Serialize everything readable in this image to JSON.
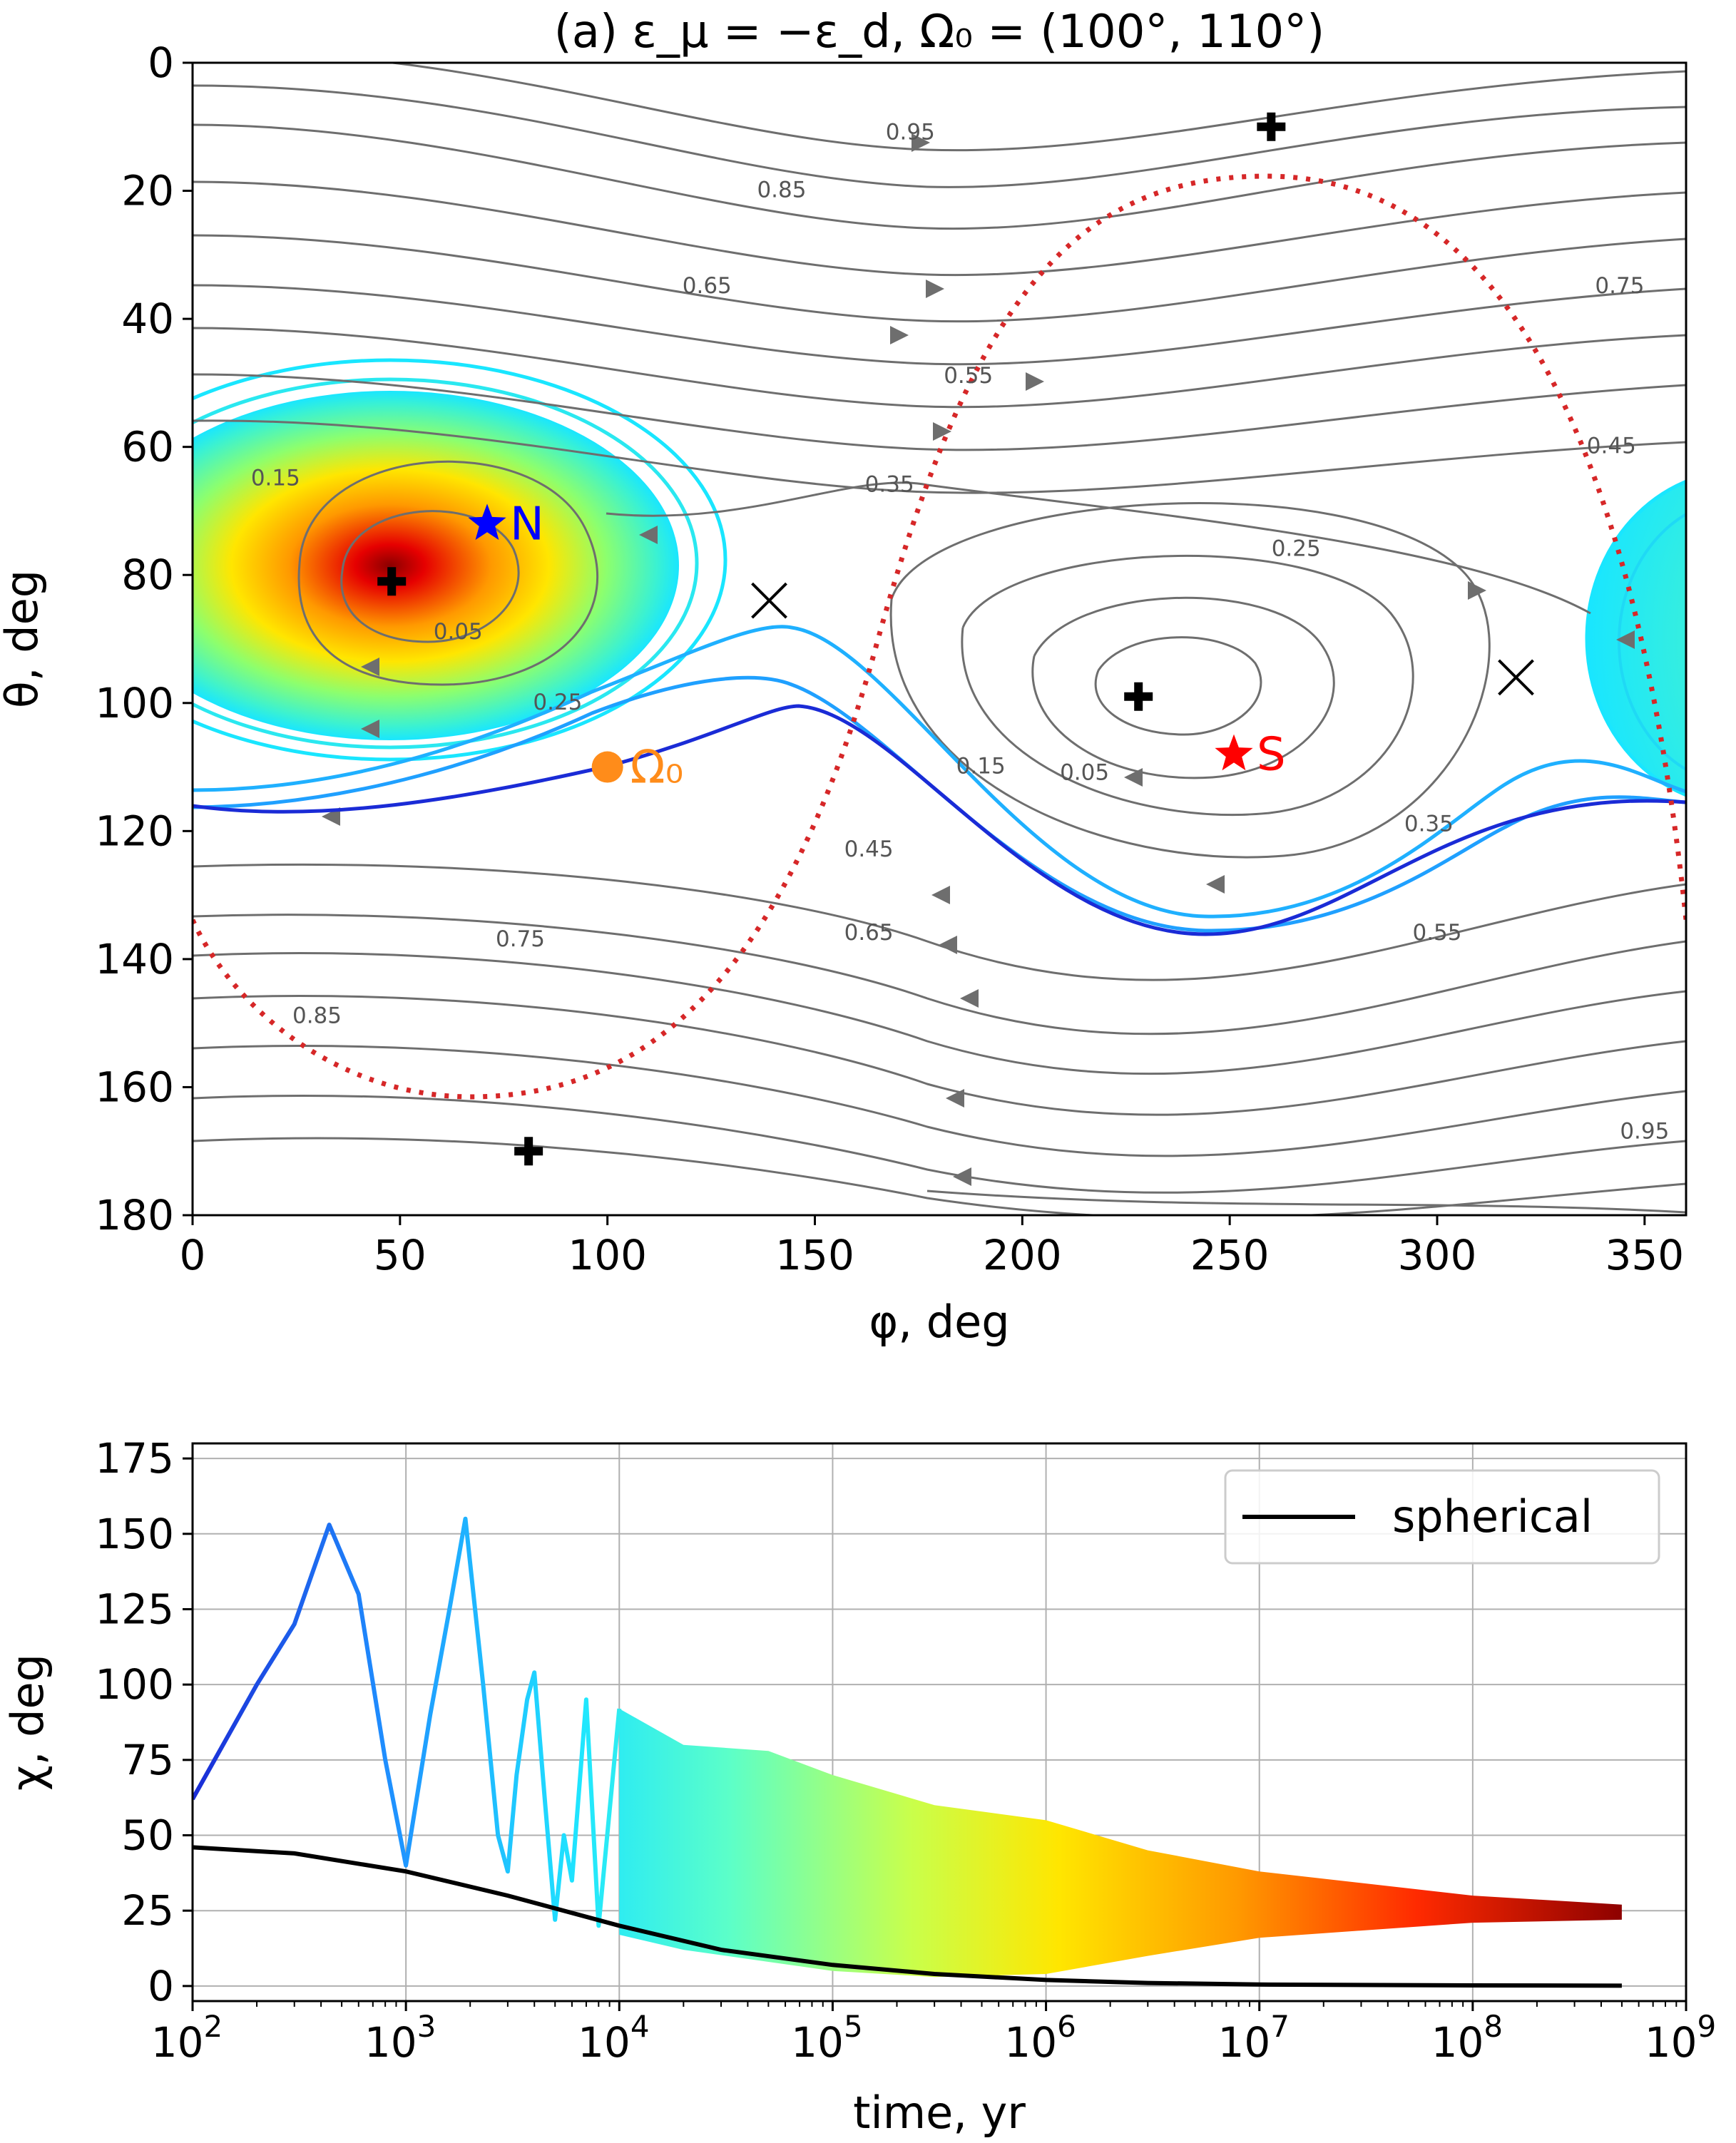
{
  "chart_data": [
    {
      "type": "contour",
      "title": "(a) ε_μ = −ε_d, Ω₀ = (100°, 110°)",
      "xlabel": "φ, deg",
      "ylabel": "θ, deg",
      "xlim": [
        0,
        360
      ],
      "ylim": [
        180,
        0
      ],
      "xticks": [
        "0",
        "50",
        "100",
        "150",
        "200",
        "250",
        "300",
        "350"
      ],
      "yticks": [
        "0",
        "20",
        "40",
        "60",
        "80",
        "100",
        "120",
        "140",
        "160",
        "180"
      ],
      "grid": false,
      "contour_levels": [
        {
          "label": "0.95",
          "x": 173,
          "y": 12
        },
        {
          "label": "0.85",
          "x": 142,
          "y": 21
        },
        {
          "label": "0.65",
          "x": 124,
          "y": 36
        },
        {
          "label": "0.55",
          "x": 187,
          "y": 50
        },
        {
          "label": "0.35",
          "x": 168,
          "y": 67
        },
        {
          "label": "0.25",
          "x": 266,
          "y": 77
        },
        {
          "label": "0.15",
          "x": 20,
          "y": 66
        },
        {
          "label": "0.05",
          "x": 64,
          "y": 90
        },
        {
          "label": "0.25",
          "x": 88,
          "y": 101
        },
        {
          "label": "0.15",
          "x": 190,
          "y": 111
        },
        {
          "label": "0.05",
          "x": 215,
          "y": 112
        },
        {
          "label": "0.35",
          "x": 298,
          "y": 120
        },
        {
          "label": "0.45",
          "x": 163,
          "y": 124
        },
        {
          "label": "0.65",
          "x": 163,
          "y": 137
        },
        {
          "label": "0.75",
          "x": 79,
          "y": 138
        },
        {
          "label": "0.85",
          "x": 30,
          "y": 150
        },
        {
          "label": "0.55",
          "x": 300,
          "y": 137
        },
        {
          "label": "0.75",
          "x": 344,
          "y": 36
        },
        {
          "label": "0.45",
          "x": 342,
          "y": 61
        },
        {
          "label": "0.95",
          "x": 350,
          "y": 168
        }
      ],
      "markers": [
        {
          "name": "N",
          "symbol": "star",
          "color": "#0000ff",
          "x": 71,
          "y": 72
        },
        {
          "name": "S",
          "symbol": "star",
          "color": "#ff0000",
          "x": 251,
          "y": 108
        },
        {
          "name": "Ω₀",
          "symbol": "circle",
          "color": "#ff8c1a",
          "x": 100,
          "y": 110
        }
      ],
      "fixed_points": [
        {
          "symbol": "plus",
          "x": 48,
          "y": 81
        },
        {
          "symbol": "plus",
          "x": 228,
          "y": 99
        },
        {
          "symbol": "plus",
          "x": 260,
          "y": 10
        },
        {
          "symbol": "plus",
          "x": 81,
          "y": 170
        },
        {
          "symbol": "x",
          "x": 139,
          "y": 84
        },
        {
          "symbol": "x",
          "x": 319,
          "y": 96
        }
      ],
      "colors": {
        "contour": "#6e6e6e",
        "separatrix": "#d62728",
        "trajectory_start": "#1a2bd6"
      }
    },
    {
      "type": "line",
      "xlabel": "time, yr",
      "ylabel": "χ, deg",
      "xscale": "log",
      "xlim": [
        100,
        1000000000
      ],
      "ylim": [
        -5,
        180
      ],
      "xticks": [
        {
          "base": "10",
          "exp": "2"
        },
        {
          "base": "10",
          "exp": "3"
        },
        {
          "base": "10",
          "exp": "4"
        },
        {
          "base": "10",
          "exp": "5"
        },
        {
          "base": "10",
          "exp": "6"
        },
        {
          "base": "10",
          "exp": "7"
        },
        {
          "base": "10",
          "exp": "8"
        },
        {
          "base": "10",
          "exp": "9"
        }
      ],
      "yticks": [
        "0",
        "25",
        "50",
        "75",
        "100",
        "125",
        "150",
        "175"
      ],
      "grid": true,
      "legend": {
        "position": "top-right",
        "entries": [
          "spherical"
        ]
      },
      "series": [
        {
          "name": "spherical",
          "color": "#000000",
          "x": [
            100,
            300,
            1000,
            3000,
            10000,
            30000,
            100000,
            300000,
            1000000,
            3000000,
            10000000,
            100000000,
            500000000
          ],
          "y": [
            46,
            44,
            38,
            30,
            20,
            12,
            7,
            4,
            2,
            1,
            0.5,
            0.2,
            0.1
          ]
        },
        {
          "x": [
            100,
            200,
            300,
            437,
            600,
            800,
            1000,
            1300,
            1600,
            1900,
            2300,
            2700,
            3000,
            3300,
            3700,
            4000,
            4500,
            5000,
            5500,
            6000,
            7000,
            8000,
            10000,
            20000,
            50000,
            100000,
            300000,
            1000000,
            3000000,
            10000000,
            100000000,
            500000000
          ],
          "y": [
            62,
            100,
            120,
            153,
            130,
            75,
            40,
            90,
            125,
            155,
            100,
            50,
            38,
            70,
            95,
            104,
            60,
            22,
            50,
            35,
            95,
            20,
            92,
            80,
            78,
            70,
            60,
            55,
            45,
            38,
            30,
            27
          ],
          "y_min": [
            62,
            100,
            120,
            153,
            130,
            75,
            40,
            90,
            125,
            155,
            100,
            50,
            38,
            70,
            95,
            104,
            60,
            22,
            50,
            35,
            95,
            20,
            17,
            12,
            8,
            5,
            3,
            4,
            10,
            16,
            21,
            22
          ]
        }
      ]
    }
  ]
}
